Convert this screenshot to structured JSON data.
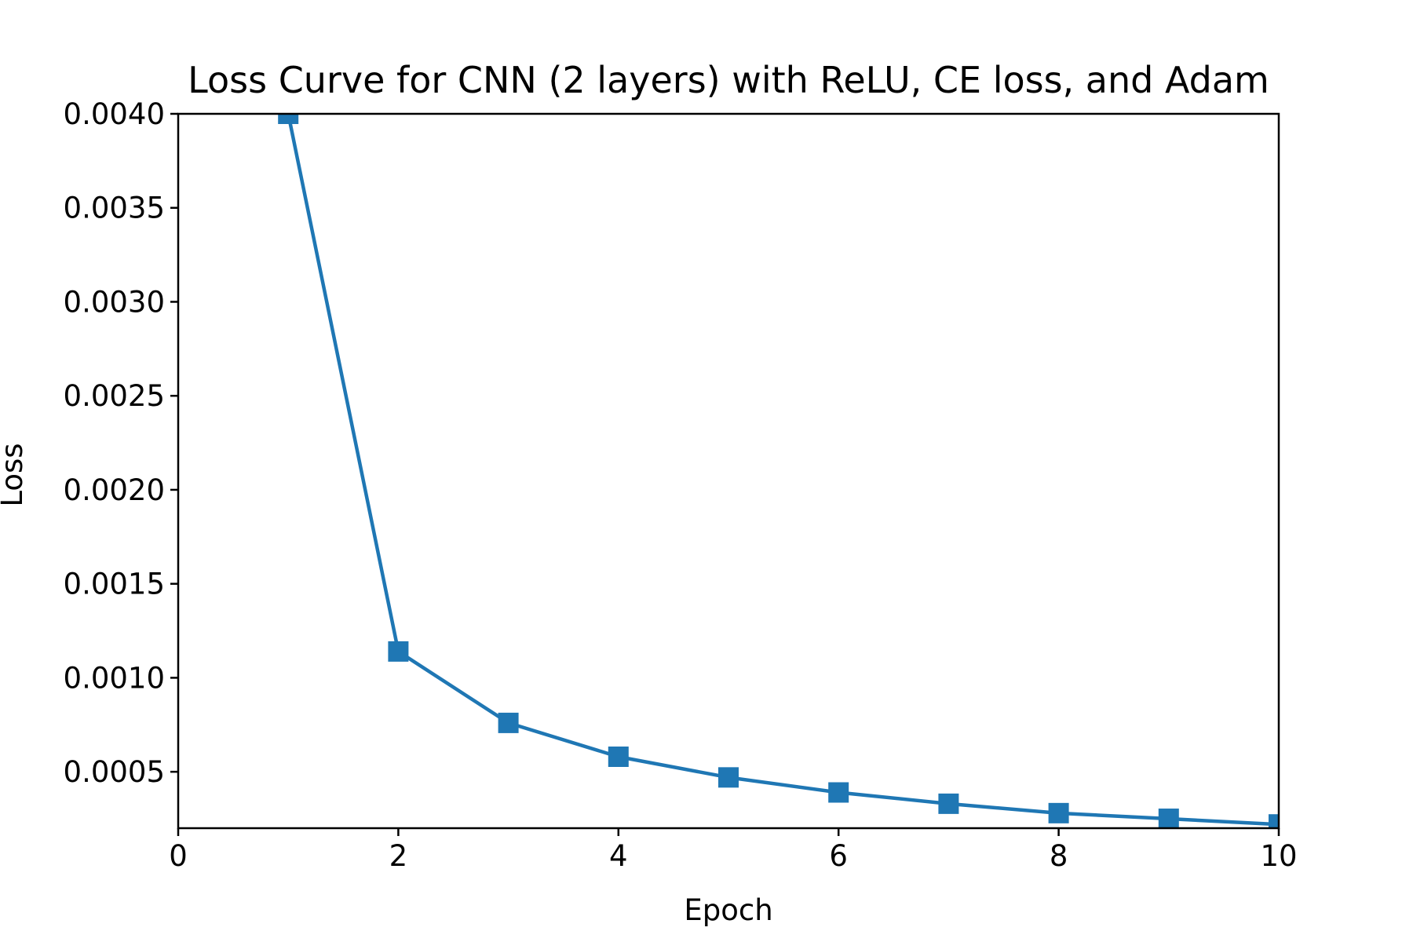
{
  "chart_data": {
    "type": "line",
    "title": "Loss Curve for CNN (2 layers) with ReLU, CE loss, and Adam",
    "xlabel": "Epoch",
    "ylabel": "Loss",
    "xlim": [
      0,
      10
    ],
    "ylim": [
      0.0002,
      0.004
    ],
    "grid": false,
    "x_ticks": [
      0,
      2,
      4,
      6,
      8,
      10
    ],
    "x_tick_labels": [
      "0",
      "2",
      "4",
      "6",
      "8",
      "10"
    ],
    "y_ticks": [
      0.0005,
      0.001,
      0.0015,
      0.002,
      0.0025,
      0.003,
      0.0035,
      0.004
    ],
    "y_tick_labels": [
      "0.0005",
      "0.0010",
      "0.0015",
      "0.0020",
      "0.0025",
      "0.0030",
      "0.0035",
      "0.0040"
    ],
    "series": [
      {
        "color": "#1f77b4",
        "marker": "square",
        "x": [
          1,
          2,
          3,
          4,
          5,
          6,
          7,
          8,
          9,
          10
        ],
        "y": [
          0.004,
          0.00114,
          0.00076,
          0.00058,
          0.00047,
          0.00039,
          0.00033,
          0.00028,
          0.00025,
          0.00022
        ]
      }
    ]
  }
}
